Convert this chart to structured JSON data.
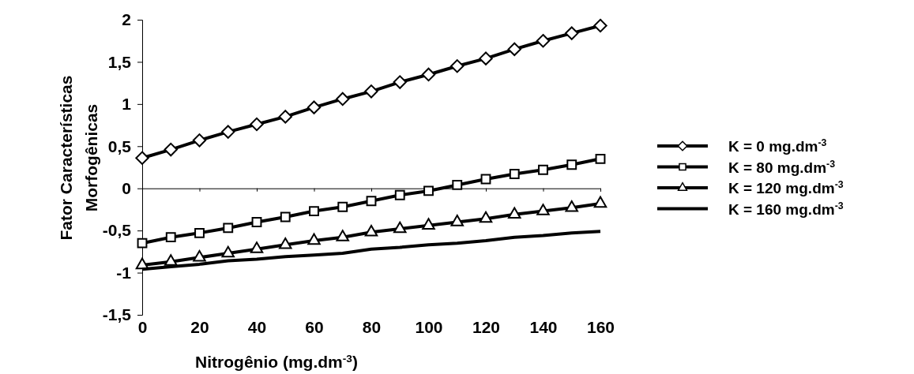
{
  "chart_data": {
    "type": "line",
    "xlabel": "Nitrogênio (mg.dm$^{-3}$)",
    "ylabel": "Fator Características\nMorfogênicas",
    "x": [
      0,
      10,
      20,
      30,
      40,
      50,
      60,
      70,
      80,
      90,
      100,
      110,
      120,
      130,
      140,
      150,
      160
    ],
    "xlim": [
      0,
      160
    ],
    "xticks": [
      0,
      20,
      40,
      60,
      80,
      100,
      120,
      140,
      160
    ],
    "ylim": [
      -1.5,
      2
    ],
    "yticks": [
      {
        "value": -1.5,
        "label": "-1,5"
      },
      -1,
      {
        "value": -0.5,
        "label": "-0,5"
      },
      0,
      {
        "value": 0.5,
        "label": "0,5"
      },
      1,
      {
        "value": 1.5,
        "label": "1,5"
      },
      2
    ],
    "grid": false,
    "legend": "right",
    "line_style": "solid",
    "series": [
      {
        "name": "K = 0 mg.dm$^{-3}$",
        "color": "#000000",
        "marker": "diamond",
        "values": [
          0.36,
          0.46,
          0.57,
          0.67,
          0.76,
          0.85,
          0.96,
          1.06,
          1.15,
          1.26,
          1.35,
          1.45,
          1.54,
          1.65,
          1.75,
          1.84,
          1.93
        ]
      },
      {
        "name": "K = 80 mg.dm$^{-3}$",
        "color": "#000000",
        "marker": "square",
        "values": [
          -0.65,
          -0.58,
          -0.53,
          -0.47,
          -0.4,
          -0.34,
          -0.27,
          -0.22,
          -0.15,
          -0.08,
          -0.03,
          0.04,
          0.11,
          0.17,
          0.22,
          0.28,
          0.35
        ]
      },
      {
        "name": "K = 120 mg.dm$^{-3}$",
        "color": "#000000",
        "marker": "triangle",
        "values": [
          -0.91,
          -0.87,
          -0.82,
          -0.77,
          -0.72,
          -0.67,
          -0.62,
          -0.58,
          -0.52,
          -0.48,
          -0.44,
          -0.4,
          -0.36,
          -0.31,
          -0.27,
          -0.23,
          -0.18
        ]
      },
      {
        "name": "K = 160 mg.dm$^{-3}$",
        "color": "#000000",
        "marker": "none",
        "values": [
          -0.96,
          -0.93,
          -0.9,
          -0.86,
          -0.84,
          -0.81,
          -0.79,
          -0.77,
          -0.72,
          -0.7,
          -0.67,
          -0.65,
          -0.62,
          -0.58,
          -0.56,
          -0.53,
          -0.51
        ]
      }
    ]
  }
}
